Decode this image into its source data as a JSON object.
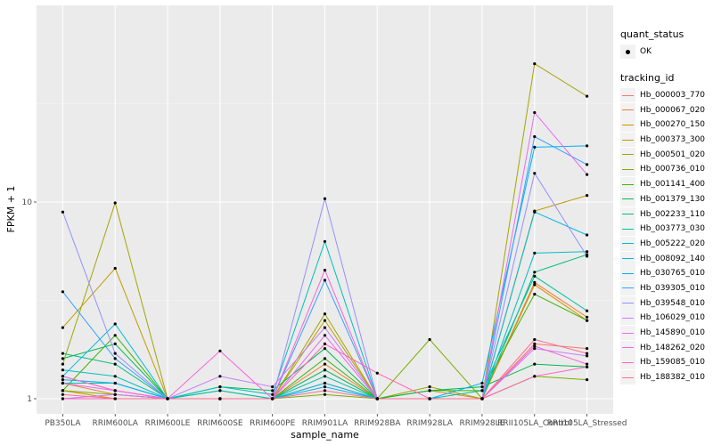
{
  "chart_data": {
    "type": "line",
    "xlabel": "sample_name",
    "ylabel": "FPKM + 1",
    "y_scale": "log10",
    "ylim": [
      0.93,
      60
    ],
    "y_ticks": [
      1,
      10
    ],
    "y_tick_labels": [
      "1",
      "10"
    ],
    "grid": true,
    "legend_placement": "right",
    "categories": [
      "PB350LA",
      "RRIM600LA",
      "RRIM600LE",
      "RRIM600SE",
      "RRIM600PE",
      "RRIM901LA",
      "RRIM928BA",
      "RRIM928LA",
      "RRIM928LE",
      "RRII105LA_Control",
      "RRII105LA_Stressed"
    ],
    "legend_shape": {
      "title": "quant_status",
      "entries": [
        "OK"
      ]
    },
    "legend_color_title": "tracking_id",
    "series": [
      {
        "name": "Hb_000003_770",
        "color": "#F8766D",
        "values": [
          1.3,
          1.1,
          1.0,
          1.0,
          1.0,
          1.2,
          1.0,
          1.0,
          1.0,
          1.9,
          1.8
        ]
      },
      {
        "name": "Hb_000067_020",
        "color": "#EA8331",
        "values": [
          1.2,
          1.05,
          1.0,
          1.0,
          1.0,
          1.5,
          1.0,
          1.1,
          1.0,
          3.9,
          2.6
        ]
      },
      {
        "name": "Hb_000270_150",
        "color": "#D89000",
        "values": [
          1.1,
          1.0,
          1.0,
          1.0,
          1.0,
          1.4,
          1.0,
          1.0,
          1.0,
          3.8,
          2.5
        ]
      },
      {
        "name": "Hb_000373_300",
        "color": "#C09B00",
        "values": [
          2.3,
          4.6,
          1.0,
          1.0,
          1.0,
          2.5,
          1.0,
          1.0,
          1.0,
          9.0,
          10.8
        ]
      },
      {
        "name": "Hb_000501_020",
        "color": "#A3A500",
        "values": [
          1.5,
          9.9,
          1.0,
          1.0,
          1.0,
          2.7,
          1.0,
          1.15,
          1.0,
          50.5,
          34.5
        ]
      },
      {
        "name": "Hb_000736_010",
        "color": "#7CAE00",
        "values": [
          1.1,
          1.05,
          1.0,
          1.0,
          1.0,
          1.05,
          1.0,
          2.0,
          1.0,
          1.3,
          1.25
        ]
      },
      {
        "name": "Hb_001141_400",
        "color": "#39B600",
        "values": [
          1.1,
          2.1,
          1.0,
          1.0,
          1.0,
          1.6,
          1.0,
          1.1,
          1.1,
          3.4,
          2.5
        ]
      },
      {
        "name": "Hb_001379_130",
        "color": "#00BB4E",
        "values": [
          1.6,
          1.9,
          1.0,
          1.15,
          1.1,
          1.8,
          1.0,
          1.1,
          1.15,
          1.5,
          1.45
        ]
      },
      {
        "name": "Hb_002233_110",
        "color": "#00BF7D",
        "values": [
          1.7,
          1.5,
          1.0,
          1.1,
          1.0,
          1.4,
          1.0,
          1.0,
          1.0,
          4.4,
          5.4
        ]
      },
      {
        "name": "Hb_003773_030",
        "color": "#00C1A3",
        "values": [
          1.2,
          1.2,
          1.0,
          1.1,
          1.0,
          1.3,
          1.0,
          1.0,
          1.1,
          4.2,
          2.8
        ]
      },
      {
        "name": "Hb_005222_020",
        "color": "#00BFC4",
        "values": [
          1.4,
          1.3,
          1.0,
          1.15,
          1.05,
          6.3,
          1.0,
          1.0,
          1.0,
          5.5,
          5.6
        ]
      },
      {
        "name": "Hb_008092_140",
        "color": "#00BAE0",
        "values": [
          1.3,
          2.4,
          1.0,
          1.0,
          1.0,
          1.2,
          1.0,
          1.0,
          1.0,
          8.9,
          6.8
        ]
      },
      {
        "name": "Hb_030765_010",
        "color": "#00B0F6",
        "values": [
          1.25,
          1.2,
          1.0,
          1.0,
          1.0,
          1.15,
          1.0,
          1.0,
          1.2,
          19.0,
          19.3
        ]
      },
      {
        "name": "Hb_039305_010",
        "color": "#35A2FF",
        "values": [
          3.5,
          1.6,
          1.0,
          1.0,
          1.0,
          4.0,
          1.0,
          1.0,
          1.0,
          21.5,
          15.5
        ]
      },
      {
        "name": "Hb_039548_010",
        "color": "#9590FF",
        "values": [
          8.9,
          1.7,
          1.0,
          1.0,
          1.0,
          10.4,
          1.0,
          1.0,
          1.0,
          14.0,
          5.3
        ]
      },
      {
        "name": "Hb_106029_010",
        "color": "#C77CFF",
        "values": [
          1.0,
          1.05,
          1.0,
          1.3,
          1.15,
          2.3,
          1.0,
          1.0,
          1.0,
          1.8,
          1.65
        ]
      },
      {
        "name": "Hb_145890_010",
        "color": "#E76BF3",
        "values": [
          1.2,
          1.1,
          1.0,
          1.0,
          1.0,
          2.1,
          1.0,
          1.0,
          1.0,
          28.5,
          13.8
        ]
      },
      {
        "name": "Hb_148262_020",
        "color": "#FA62DB",
        "values": [
          1.3,
          1.1,
          1.0,
          1.75,
          1.0,
          4.5,
          1.0,
          1.0,
          1.0,
          1.85,
          1.5
        ]
      },
      {
        "name": "Hb_159085_010",
        "color": "#FF62BC",
        "values": [
          1.0,
          1.0,
          1.0,
          1.0,
          1.0,
          1.9,
          1.35,
          1.0,
          1.0,
          1.3,
          1.45
        ]
      },
      {
        "name": "Hb_188382_010",
        "color": "#FF6C90",
        "values": [
          1.05,
          1.0,
          1.0,
          1.0,
          1.0,
          1.1,
          1.0,
          1.0,
          1.0,
          2.0,
          1.7
        ]
      }
    ]
  }
}
